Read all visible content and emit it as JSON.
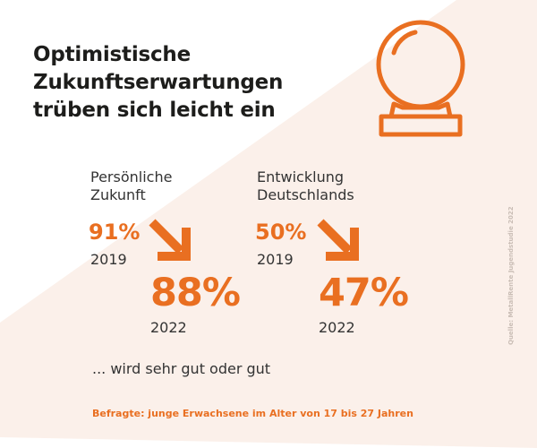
{
  "title": "Optimistische\nZukunftserwartungen\ntrüben sich leicht ein",
  "colors": {
    "accent": "#e96f21",
    "background_shape": "#fbf0ea",
    "text": "#333333"
  },
  "icon": "crystal-ball-icon",
  "stats": [
    {
      "heading": "Persönliche\nZukunft",
      "before": {
        "value": "91%",
        "year": "2019"
      },
      "after": {
        "value": "88%",
        "year": "2022"
      },
      "trend_icon": "arrow-down-right-icon"
    },
    {
      "heading": "Entwicklung\nDeutschlands",
      "before": {
        "value": "50%",
        "year": "2019"
      },
      "after": {
        "value": "47%",
        "year": "2022"
      },
      "trend_icon": "arrow-down-right-icon"
    }
  ],
  "note": "... wird sehr gut oder gut",
  "respondents": "Befragte: junge Erwachsene im Alter von 17 bis 27 Jahren",
  "source": "Quelle: MetallRente Jugendstudie 2022"
}
